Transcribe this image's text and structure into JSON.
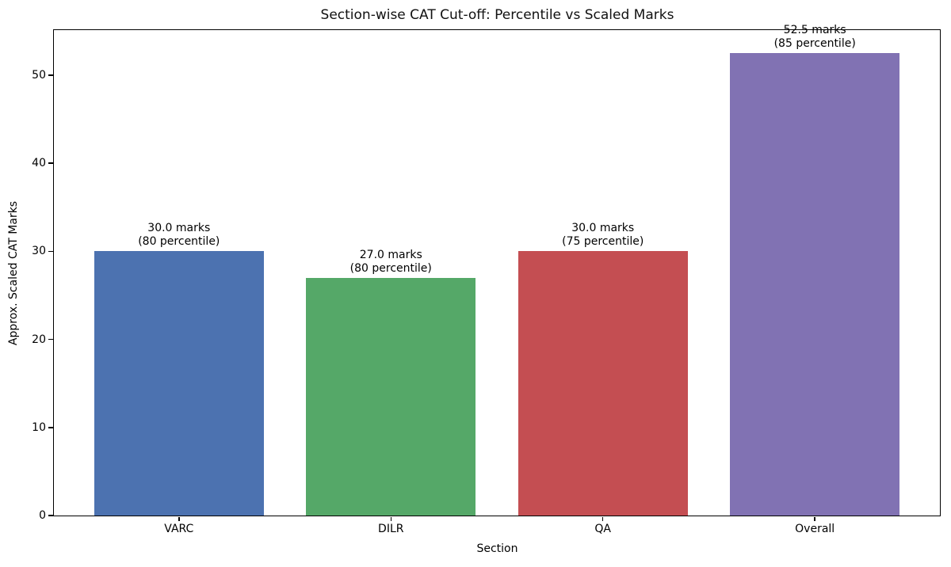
{
  "chart_data": {
    "type": "bar",
    "title": "Section-wise CAT Cut-off: Percentile vs Scaled Marks",
    "xlabel": "Section",
    "ylabel": "Approx. Scaled CAT Marks",
    "categories": [
      "VARC",
      "DILR",
      "QA",
      "Overall"
    ],
    "values": [
      30.0,
      27.0,
      30.0,
      52.5
    ],
    "percentiles": [
      80,
      80,
      75,
      85
    ],
    "annotations": [
      "30.0 marks\n(80 percentile)",
      "27.0 marks\n(80 percentile)",
      "30.0 marks\n(75 percentile)",
      "52.5 marks\n(85 percentile)"
    ],
    "bar_colors": [
      "#4C72B0",
      "#55A868",
      "#C44E52",
      "#8172B3"
    ],
    "ylim": [
      0,
      55.125
    ],
    "yticks": [
      0,
      10,
      20,
      30,
      40,
      50
    ],
    "bar_width_units": 0.8,
    "grid": false,
    "legend": null,
    "background_color": "#ffffff",
    "spine_color": "#000000"
  }
}
